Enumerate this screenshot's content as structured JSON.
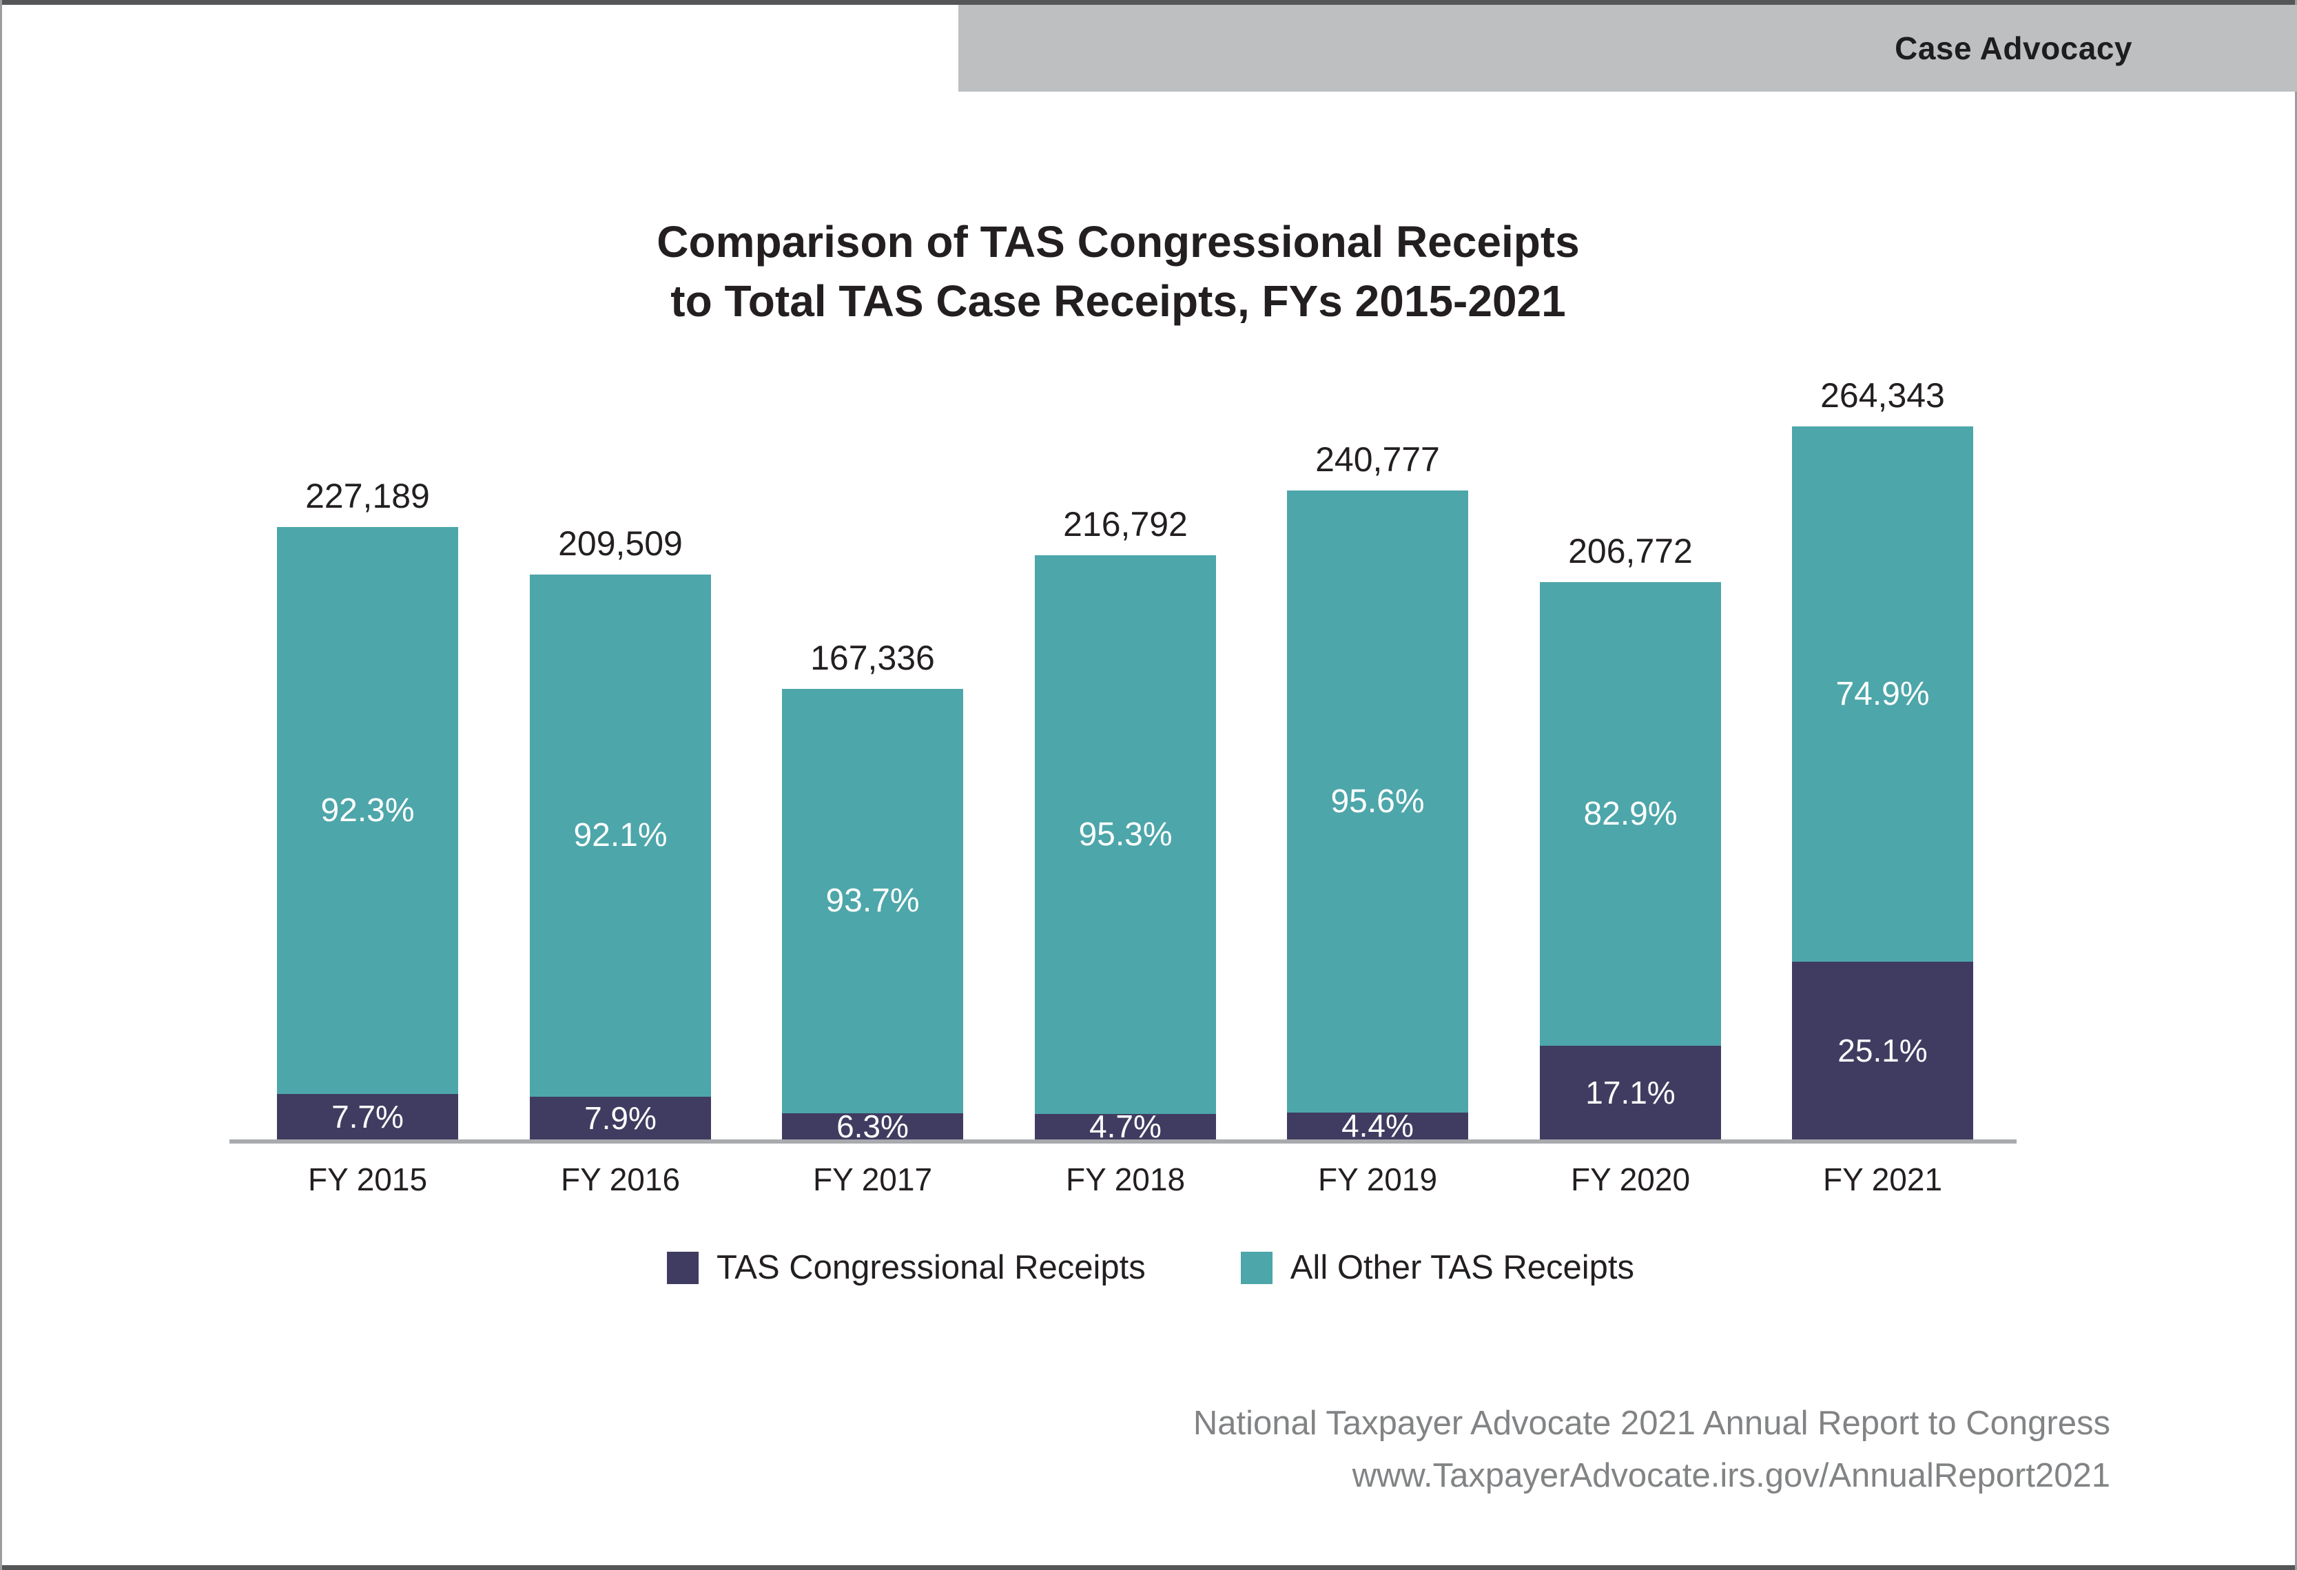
{
  "page": {
    "header_tab": "Case Advocacy",
    "title_line1": "Comparison of TAS Congressional Receipts",
    "title_line2": "to Total TAS Case Receipts, FYs 2015-2021",
    "footer_line1": "National Taxpayer Advocate 2021 Annual Report to Congress",
    "footer_line2": "www.TaxpayerAdvocate.irs.gov/AnnualReport2021"
  },
  "colors": {
    "congressional": "#403c61",
    "all_other": "#4da6aa",
    "header_bg": "#bdbfc1",
    "strip": "#555658",
    "axis": "#a8aaad",
    "text_dark": "#231f20",
    "footer_text": "#818385",
    "label_on_bar": "#ffffff"
  },
  "legend": [
    {
      "label": "TAS Congressional Receipts",
      "color_key": "congressional"
    },
    {
      "label": "All Other TAS Receipts",
      "color_key": "all_other"
    }
  ],
  "chart_data": {
    "type": "bar",
    "stacked": true,
    "title": "Comparison of TAS Congressional Receipts to Total TAS Case Receipts, FYs 2015-2021",
    "categories": [
      "FY 2015",
      "FY 2016",
      "FY 2017",
      "FY 2018",
      "FY 2019",
      "FY 2020",
      "FY 2021"
    ],
    "totals": [
      227189,
      209509,
      167336,
      216792,
      240777,
      206772,
      264343
    ],
    "total_labels": [
      "227,189",
      "209,509",
      "167,336",
      "216,792",
      "240,777",
      "206,772",
      "264,343"
    ],
    "series": [
      {
        "name": "TAS Congressional Receipts",
        "percents": [
          7.7,
          7.9,
          6.3,
          4.7,
          4.4,
          17.1,
          25.1
        ],
        "percent_labels": [
          "7.7%",
          "7.9%",
          "6.3%",
          "4.7%",
          "4.4%",
          "17.1%",
          "25.1%"
        ]
      },
      {
        "name": "All Other TAS Receipts",
        "percents": [
          92.3,
          92.1,
          93.7,
          95.3,
          95.6,
          82.9,
          74.9
        ],
        "percent_labels": [
          "92.3%",
          "92.1%",
          "93.7%",
          "95.3%",
          "95.6%",
          "82.9%",
          "74.9%"
        ]
      }
    ],
    "ylim": [
      0,
      264343
    ],
    "grid": false,
    "legend_position": "bottom",
    "value_labels": "above bars (totals), inside segments (percents)"
  }
}
